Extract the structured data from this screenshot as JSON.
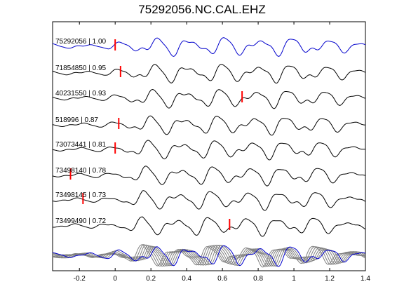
{
  "title": "75292056.NC.CAL.EHZ",
  "chart_data": {
    "type": "line",
    "title": "75292056.NC.CAL.EHZ",
    "xlabel": "",
    "ylabel": "",
    "xlim": [
      -0.35,
      1.4
    ],
    "xticks": [
      "-0.2",
      "0",
      "0.2",
      "0.4",
      "0.6",
      "0.8",
      "1",
      "1.2",
      "1.4"
    ],
    "xtick_values": [
      -0.2,
      0,
      0.2,
      0.4,
      0.6,
      0.8,
      1,
      1.2,
      1.4
    ],
    "grid": false,
    "colors": {
      "master": "#0000cc",
      "trace": "#000000",
      "pick": "#ff0000",
      "stack_other": "#808080"
    },
    "series": [
      {
        "name": "75292056 | 1.00",
        "pick": 0.0,
        "seed": 1
      },
      {
        "name": "71854850 | 0.95",
        "pick": 0.03,
        "seed": 2
      },
      {
        "name": "40231550 | 0.93",
        "pick": 0.71,
        "seed": 3
      },
      {
        "name": "518996 | 0.87",
        "pick": 0.02,
        "seed": 4
      },
      {
        "name": "73073441 | 0.81",
        "pick": 0.0,
        "seed": 5
      },
      {
        "name": "73498140 | 0.78",
        "pick": -0.25,
        "seed": 6
      },
      {
        "name": "73498145 | 0.73",
        "pick": -0.18,
        "seed": 7
      },
      {
        "name": "73499490 | 0.72",
        "pick": 0.64,
        "seed": 8
      }
    ]
  }
}
